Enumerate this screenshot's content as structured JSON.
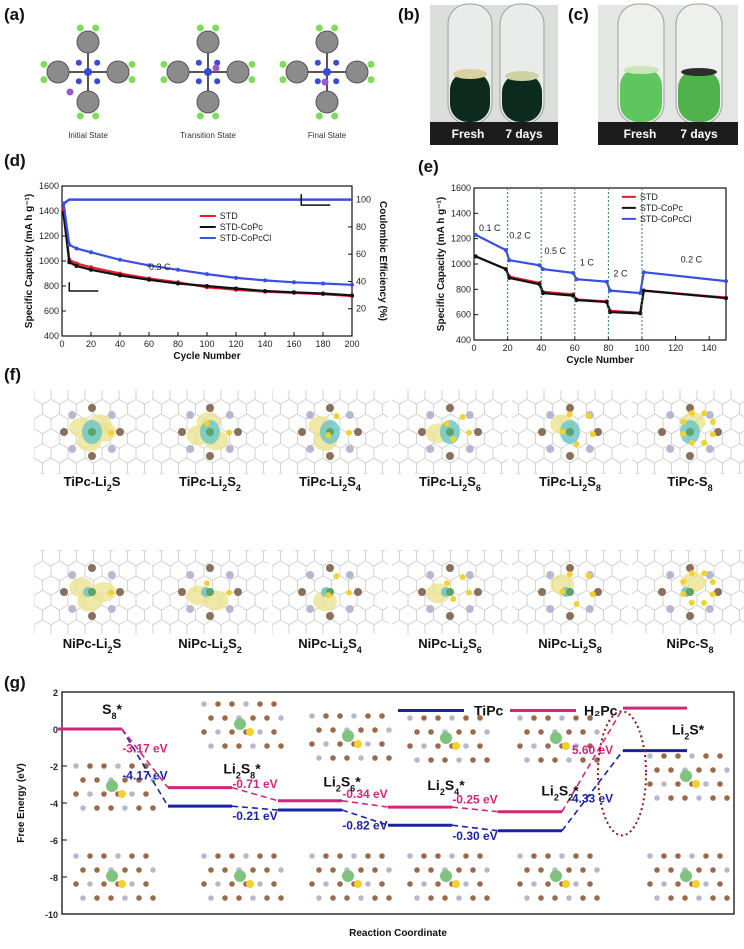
{
  "panels": {
    "a": {
      "label": "(a)",
      "states": [
        "Initial State",
        "Transition State",
        "Final State"
      ]
    },
    "b": {
      "label": "(b)",
      "tubes": [
        "Fresh",
        "7 days"
      ],
      "liquid_color": "#0d2a1e"
    },
    "c": {
      "label": "(c)",
      "tubes": [
        "Fresh",
        "7 days"
      ],
      "liquid_color": "#5fc65f"
    },
    "d": {
      "label": "(d)"
    },
    "e": {
      "label": "(e)"
    },
    "f": {
      "label": "(f)",
      "row1": [
        "TiPc-Li",
        "TiPc-Li",
        "TiPc-Li",
        "TiPc-Li",
        "TiPc-Li",
        "TiPc-S"
      ],
      "row1_sub": [
        "2",
        "2",
        "2",
        "2",
        "2",
        "8"
      ],
      "row1_tail": [
        "S",
        "S",
        "S",
        "S",
        "S",
        ""
      ],
      "row1_tsub": [
        "",
        "2",
        "4",
        "6",
        "8",
        ""
      ],
      "row2": [
        "NiPc-Li",
        "NiPc-Li",
        "NiPc-Li",
        "NiPc-Li",
        "NiPc-Li",
        "NiPc-S"
      ],
      "row2_sub": [
        "2",
        "2",
        "2",
        "2",
        "2",
        "8"
      ],
      "row2_tail": [
        "S",
        "S",
        "S",
        "S",
        "S",
        ""
      ],
      "row2_tsub": [
        "",
        "2",
        "4",
        "6",
        "8",
        ""
      ]
    },
    "g": {
      "label": "(g)"
    }
  },
  "colors": {
    "std": "#e8192c",
    "copc": "#111111",
    "copccl": "#3a4fe0",
    "tipc": "#1a23a8",
    "h2pc": "#d4257a"
  },
  "chart_data": [
    {
      "id": "d",
      "type": "line",
      "xlabel": "Cycle Number",
      "ylabel": "Specific Capacity (mA h g⁻¹)",
      "y2label": "Coulombic Efficiency (%)",
      "xlim": [
        0,
        200
      ],
      "ylim": [
        400,
        1600
      ],
      "y2lim": [
        0,
        110
      ],
      "xticks": [
        "0",
        "20",
        "40",
        "60",
        "80",
        "100",
        "120",
        "140",
        "160",
        "180",
        "200"
      ],
      "yticks": [
        "400",
        "600",
        "800",
        "1000",
        "1200",
        "1400",
        "1600"
      ],
      "y2ticks": [
        "20",
        "40",
        "60",
        "80",
        "100"
      ],
      "annotation": "0.3 C",
      "legend": [
        "STD",
        "STD-CoPc",
        "STD-CoPcCl"
      ],
      "x": [
        1,
        5,
        10,
        20,
        40,
        60,
        80,
        100,
        120,
        140,
        160,
        180,
        200
      ],
      "series": [
        {
          "name": "STD",
          "values": [
            1420,
            1010,
            980,
            950,
            900,
            860,
            830,
            790,
            770,
            755,
            745,
            735,
            720
          ]
        },
        {
          "name": "STD-CoPc",
          "values": [
            1380,
            990,
            960,
            930,
            885,
            850,
            820,
            800,
            780,
            760,
            750,
            740,
            725
          ]
        },
        {
          "name": "STD-CoPcCl",
          "values": [
            1460,
            1130,
            1100,
            1070,
            1010,
            965,
            930,
            895,
            865,
            845,
            830,
            820,
            810
          ]
        },
        {
          "name": "Coulombic Efficiency",
          "axis": "right",
          "values": [
            97,
            100,
            100,
            100,
            100,
            100,
            100,
            100,
            100,
            100,
            100,
            100,
            100
          ]
        }
      ]
    },
    {
      "id": "e",
      "type": "line",
      "xlabel": "Cycle Number",
      "ylabel": "Specific Capacity (mA h g⁻¹)",
      "xlim": [
        0,
        150
      ],
      "ylim": [
        400,
        1600
      ],
      "xticks": [
        "0",
        "20",
        "40",
        "60",
        "80",
        "100",
        "120",
        "140"
      ],
      "yticks": [
        "400",
        "600",
        "800",
        "1000",
        "1200",
        "1400",
        "1600"
      ],
      "rates": [
        "0.1 C",
        "0.2 C",
        "0.5 C",
        "1 C",
        "2 C",
        "0.2 C"
      ],
      "legend": [
        "STD",
        "STD-CoPc",
        "STD-CoPcCl"
      ],
      "x": [
        1,
        19,
        21,
        39,
        41,
        59,
        61,
        79,
        81,
        99,
        101,
        150
      ],
      "series": [
        {
          "name": "STD",
          "values": [
            1060,
            960,
            900,
            850,
            780,
            760,
            720,
            705,
            630,
            615,
            790,
            735
          ]
        },
        {
          "name": "STD-CoPc",
          "values": [
            1060,
            960,
            890,
            840,
            770,
            750,
            715,
            700,
            620,
            610,
            790,
            730
          ]
        },
        {
          "name": "STD-CoPcCl",
          "values": [
            1230,
            1110,
            1030,
            990,
            960,
            930,
            880,
            860,
            790,
            770,
            935,
            865
          ]
        }
      ]
    },
    {
      "id": "g",
      "type": "line",
      "xlabel": "Reaction Coordinate",
      "ylabel": "Free Energy (eV)",
      "ylim": [
        -10,
        2
      ],
      "yticks": [
        "2",
        "0",
        "-2",
        "-4",
        "-6",
        "-8",
        "-10"
      ],
      "legend": [
        "TiPc",
        "H₂Pc"
      ],
      "species": [
        "S",
        "Li",
        "Li",
        "Li",
        "Li",
        "Li"
      ],
      "species_sub": [
        "8",
        "2",
        "2",
        "2",
        "2",
        "2"
      ],
      "species_tail": [
        "*",
        "S",
        "S",
        "S",
        "S",
        "S*"
      ],
      "species_tsub": [
        "",
        "8",
        "6",
        "4",
        "2",
        ""
      ],
      "species_star": [
        "",
        "*",
        "*",
        "*",
        "*",
        ""
      ],
      "series": [
        {
          "name": "TiPc",
          "values": [
            0,
            -4.17,
            -4.38,
            -5.2,
            -5.5,
            -1.17
          ]
        },
        {
          "name": "H2Pc",
          "values": [
            0,
            -3.17,
            -3.88,
            -4.22,
            -4.47,
            1.13
          ]
        }
      ],
      "tipc_labels": [
        "-4.17 eV",
        "-0.21 eV",
        "-0.82 eV",
        "-0.30 eV",
        "4.33 eV"
      ],
      "h2pc_labels": [
        "-3.17 eV",
        "-0.71 eV",
        "-0.34 eV",
        "-0.25 eV",
        "5.60 eV"
      ]
    }
  ]
}
